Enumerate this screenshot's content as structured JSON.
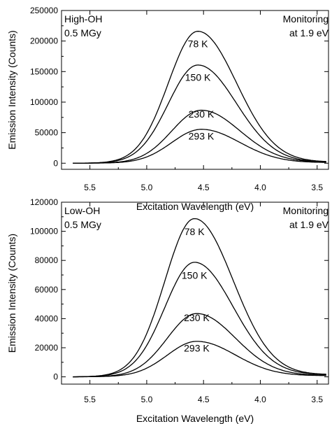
{
  "figure": {
    "colors": {
      "line": "#000000",
      "background": "#ffffff"
    }
  },
  "chart_data": [
    {
      "type": "line",
      "ylabel": "Emission Intensity (Counts)",
      "xlabel": "Excitation Wavelength (eV)",
      "annotations": {
        "sample": "High-OH",
        "dose": "0.5 MGy",
        "monitor_line1": "Monitoring",
        "monitor_line2": "at 1.9 eV"
      },
      "xlim": [
        5.75,
        3.4
      ],
      "ylim": [
        -10000,
        250000
      ],
      "x_ticks": [
        "5.5",
        "5.0",
        "4.5",
        "4.0",
        "3.5"
      ],
      "y_ticks": [
        "0",
        "50000",
        "100000",
        "150000",
        "200000",
        "250000"
      ],
      "series": [
        {
          "name": "78 K",
          "peak_x": 4.55,
          "peak_y": 215000,
          "baseline_end": 2000
        },
        {
          "name": "150 K",
          "peak_x": 4.55,
          "peak_y": 160000,
          "baseline_end": 1500
        },
        {
          "name": "230 K",
          "peak_x": 4.52,
          "peak_y": 86000,
          "baseline_end": 1500
        },
        {
          "name": "293 K",
          "peak_x": 4.52,
          "peak_y": 55000,
          "baseline_end": 1000
        }
      ],
      "grid": false,
      "legend": "none"
    },
    {
      "type": "line",
      "ylabel": "Emission Intensity (Counts)",
      "xlabel": "Excitation Wavelength (eV)",
      "annotations": {
        "sample": "Low-OH",
        "dose": "0.5 MGy",
        "monitor_line1": "Monitoring",
        "monitor_line2": "at 1.9 eV"
      },
      "xlim": [
        5.75,
        3.4
      ],
      "ylim": [
        -5000,
        120000
      ],
      "x_ticks": [
        "5.5",
        "5.0",
        "4.5",
        "4.0",
        "3.5"
      ],
      "y_ticks": [
        "0",
        "20000",
        "40000",
        "60000",
        "80000",
        "100000",
        "120000"
      ],
      "series": [
        {
          "name": "78 K",
          "peak_x": 4.58,
          "peak_y": 108000,
          "baseline_end": 1500
        },
        {
          "name": "150 K",
          "peak_x": 4.58,
          "peak_y": 78000,
          "baseline_end": 1500
        },
        {
          "name": "230 K",
          "peak_x": 4.56,
          "peak_y": 43000,
          "baseline_end": 1000
        },
        {
          "name": "293 K",
          "peak_x": 4.56,
          "peak_y": 24000,
          "baseline_end": 800
        }
      ],
      "grid": false,
      "legend": "none"
    }
  ]
}
